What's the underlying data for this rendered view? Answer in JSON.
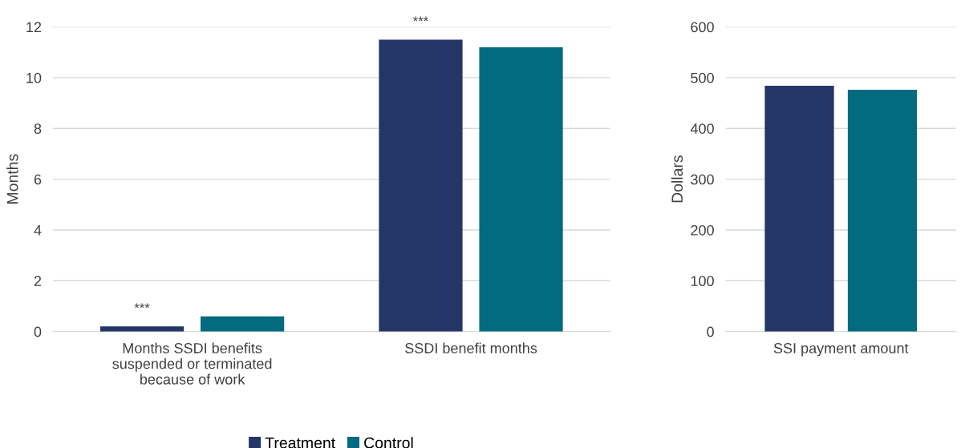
{
  "chart_data": [
    {
      "type": "bar",
      "ylabel": "Months",
      "categories": [
        "Months SSDI benefits\nsuspended or terminated\nbecause of work",
        "SSDI benefit months"
      ],
      "series": [
        {
          "name": "Treatment",
          "color": "#243665",
          "values": [
            0.2,
            11.5
          ]
        },
        {
          "name": "Control",
          "color": "#046b7f",
          "values": [
            0.6,
            11.2
          ]
        }
      ],
      "ylim": [
        0,
        12
      ],
      "yticks": [
        0,
        2,
        4,
        6,
        8,
        10,
        12
      ],
      "grid": "y",
      "legend": "bottom",
      "annotations": [
        "***",
        "***"
      ]
    },
    {
      "type": "bar",
      "ylabel": "Dollars",
      "categories": [
        "SSI payment amount"
      ],
      "series": [
        {
          "color": "#243665",
          "values": [
            484
          ]
        },
        {
          "color": "#046b7f",
          "values": [
            476
          ]
        }
      ],
      "ylim": [
        0,
        600
      ],
      "yticks": [
        0,
        100,
        200,
        300,
        400,
        500,
        600
      ],
      "grid": "y"
    }
  ]
}
